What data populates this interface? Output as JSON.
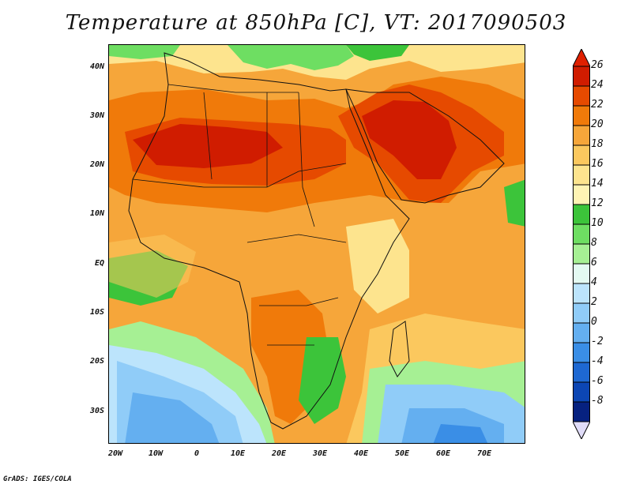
{
  "title": "Temperature at 850hPa [C], VT: 2017090503",
  "credit": "GrADS: IGES/COLA",
  "lat_labels": [
    "40N",
    "30N",
    "20N",
    "10N",
    "EQ",
    "10S",
    "20S",
    "30S"
  ],
  "lon_labels": [
    "20W",
    "10W",
    "0",
    "10E",
    "20E",
    "30E",
    "40E",
    "50E",
    "60E",
    "70E"
  ],
  "colorbar": {
    "labels": [
      "26",
      "24",
      "22",
      "20",
      "18",
      "16",
      "14",
      "12",
      "10",
      "8",
      "6",
      "4",
      "2",
      "0",
      "-2",
      "-4",
      "-6",
      "-8"
    ],
    "colors": [
      "#d01c00",
      "#e64a00",
      "#f07a0a",
      "#f6a63a",
      "#fbc85e",
      "#fde48e",
      "#fff4b4",
      "#3cc43a",
      "#6ede62",
      "#a6f094",
      "#e4faf2",
      "#bce4fc",
      "#90ccf8",
      "#64aff0",
      "#3a8ee6",
      "#1e68d2",
      "#0c46b4",
      "#062180"
    ],
    "top_arrow": "#e02000",
    "bottom_arrow": "#e0dcf8"
  }
}
